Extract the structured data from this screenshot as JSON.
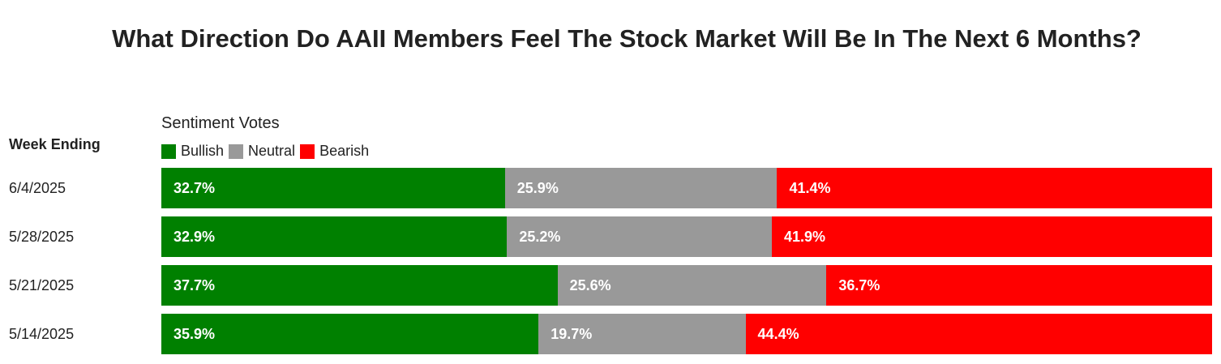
{
  "chart_data": {
    "type": "bar",
    "orientation": "horizontal",
    "stacked": true,
    "title": "What Direction Do AAII Members Feel The Stock Market Will Be In The Next 6 Months?",
    "legend_title": "Sentiment Votes",
    "category_header": "Week Ending",
    "categories": [
      "6/4/2025",
      "5/28/2025",
      "5/21/2025",
      "5/14/2025"
    ],
    "series": [
      {
        "name": "Bullish",
        "color": "#008000",
        "values": [
          32.7,
          32.9,
          37.7,
          35.9
        ],
        "labels": [
          "32.7%",
          "32.9%",
          "37.7%",
          "35.9%"
        ]
      },
      {
        "name": "Neutral",
        "color": "#999999",
        "values": [
          25.9,
          25.2,
          25.6,
          19.7
        ],
        "labels": [
          "25.9%",
          "25.2%",
          "25.6%",
          "19.7%"
        ]
      },
      {
        "name": "Bearish",
        "color": "#ff0000",
        "values": [
          41.4,
          41.9,
          36.7,
          44.4
        ],
        "labels": [
          "41.4%",
          "41.9%",
          "36.7%",
          "44.4%"
        ]
      }
    ],
    "legend_position": "top-left",
    "grid": false
  }
}
